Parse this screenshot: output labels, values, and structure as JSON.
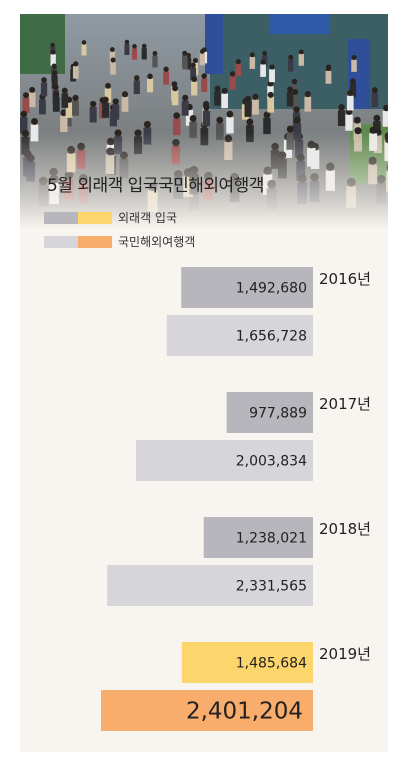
{
  "title": "5월 외래객 입국국민해외여행객",
  "legend": [
    {
      "label": "외래객 입국",
      "colors": [
        "#b7b6bc",
        "#fcd56d"
      ]
    },
    {
      "label": "국민해외여행객",
      "colors": [
        "#d6d5d9",
        "#f9ad6c"
      ]
    }
  ],
  "chart_data": {
    "type": "bar",
    "orientation": "horizontal",
    "categories": [
      "2016년",
      "2017년",
      "2018년",
      "2019년"
    ],
    "series": [
      {
        "name": "외래객 입국",
        "values": [
          1492680,
          977889,
          1238021,
          1485684
        ]
      },
      {
        "name": "국민해외여행객",
        "values": [
          1656728,
          2003834,
          2331565,
          2401204
        ]
      }
    ],
    "value_labels": [
      [
        "1,492,680",
        "977,889",
        "1,238,021",
        "1,485,684"
      ],
      [
        "1,656,728",
        "2,003,834",
        "2,331,565",
        "2,401,204"
      ]
    ],
    "colors": {
      "inbound": "#b7b6bc",
      "outbound": "#d6d5d9",
      "inbound_highlight": "#fcd56d",
      "outbound_highlight": "#f9ad6c"
    }
  }
}
